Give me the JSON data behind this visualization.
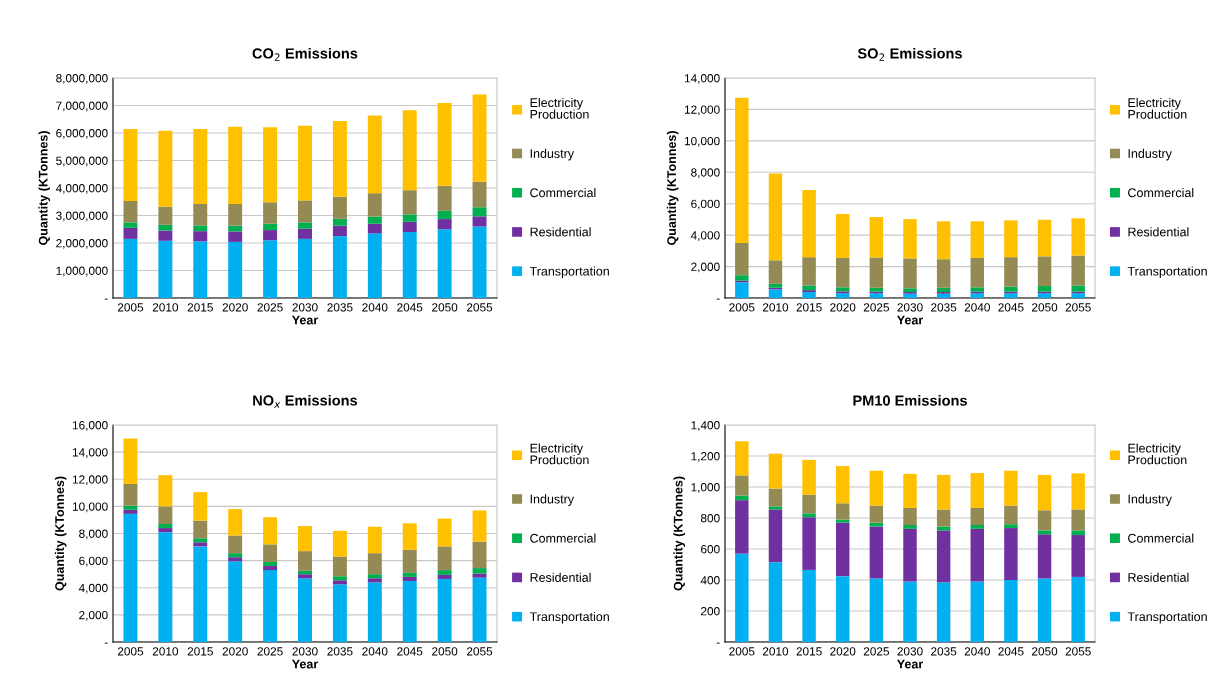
{
  "chart_data": [
    {
      "type": "bar",
      "stacked": true,
      "title": "CO$_{2}$ Emissions",
      "xlabel": "Year",
      "ylabel": "Quantity (KTonnes)",
      "categories": [
        "2005",
        "2010",
        "2015",
        "2020",
        "2025",
        "2030",
        "2035",
        "2040",
        "2045",
        "2050",
        "2055"
      ],
      "ylim": [
        0,
        8000000
      ],
      "yticks": [
        {
          "value": 0,
          "label": "-"
        },
        {
          "value": 1000000,
          "label": "1,000,000"
        },
        {
          "value": 2000000,
          "label": "2,000,000"
        },
        {
          "value": 3000000,
          "label": "3,000,000"
        },
        {
          "value": 4000000,
          "label": "4,000,000"
        },
        {
          "value": 5000000,
          "label": "5,000,000"
        },
        {
          "value": 6000000,
          "label": "6,000,000"
        },
        {
          "value": 7000000,
          "label": "7,000,000"
        },
        {
          "value": 8000000,
          "label": "8,000,000"
        }
      ],
      "grid": "y",
      "legend": "right",
      "series": [
        {
          "name": "Transportation",
          "color": "#00b0f0",
          "values": [
            2150000,
            2080000,
            2060000,
            2040000,
            2100000,
            2150000,
            2250000,
            2350000,
            2400000,
            2500000,
            2600000
          ]
        },
        {
          "name": "Residential",
          "color": "#7030a0",
          "values": [
            400000,
            370000,
            370000,
            380000,
            370000,
            370000,
            380000,
            350000,
            370000,
            370000,
            370000
          ]
        },
        {
          "name": "Commercial",
          "color": "#00b050",
          "values": [
            200000,
            210000,
            210000,
            210000,
            230000,
            230000,
            250000,
            260000,
            270000,
            300000,
            330000
          ]
        },
        {
          "name": "Industry",
          "color": "#948a54",
          "values": [
            780000,
            660000,
            780000,
            790000,
            780000,
            800000,
            800000,
            850000,
            880000,
            910000,
            930000
          ]
        },
        {
          "name": "Electricity Production",
          "color": "#ffc000",
          "values": [
            2620000,
            2760000,
            2730000,
            2810000,
            2730000,
            2710000,
            2760000,
            2830000,
            2910000,
            3010000,
            3170000
          ]
        }
      ]
    },
    {
      "type": "bar",
      "stacked": true,
      "title": "SO$_{2}$ Emissions",
      "xlabel": "Year",
      "ylabel": "Quantity (KTonnes)",
      "categories": [
        "2005",
        "2010",
        "2015",
        "2020",
        "2025",
        "2030",
        "2035",
        "2040",
        "2045",
        "2050",
        "2055"
      ],
      "ylim": [
        0,
        14000
      ],
      "yticks": [
        {
          "value": 0,
          "label": "-"
        },
        {
          "value": 2000,
          "label": "2,000"
        },
        {
          "value": 4000,
          "label": "4,000"
        },
        {
          "value": 6000,
          "label": "6,000"
        },
        {
          "value": 8000,
          "label": "8,000"
        },
        {
          "value": 10000,
          "label": "10,000"
        },
        {
          "value": 12000,
          "label": "12,000"
        },
        {
          "value": 14000,
          "label": "14,000"
        }
      ],
      "grid": "y",
      "legend": "right",
      "series": [
        {
          "name": "Transportation",
          "color": "#00b0f0",
          "values": [
            1000,
            550,
            380,
            300,
            300,
            280,
            280,
            300,
            300,
            300,
            300
          ]
        },
        {
          "name": "Residential",
          "color": "#7030a0",
          "values": [
            100,
            100,
            120,
            120,
            100,
            100,
            100,
            100,
            100,
            100,
            100
          ]
        },
        {
          "name": "Commercial",
          "color": "#00b050",
          "values": [
            350,
            250,
            300,
            260,
            250,
            240,
            270,
            280,
            320,
            360,
            400
          ]
        },
        {
          "name": "Industry",
          "color": "#948a54",
          "values": [
            2050,
            1500,
            1800,
            1870,
            1930,
            1900,
            1820,
            1870,
            1880,
            1890,
            1900
          ]
        },
        {
          "name": "Electricity Production",
          "color": "#ffc000",
          "values": [
            9250,
            5520,
            4270,
            2800,
            2570,
            2500,
            2410,
            2330,
            2340,
            2330,
            2370
          ]
        }
      ]
    },
    {
      "type": "bar",
      "stacked": true,
      "title": "NO$_{x}$ Emissions",
      "xlabel": "Year",
      "ylabel": "Quantity (KTonnes)",
      "categories": [
        "2005",
        "2010",
        "2015",
        "2020",
        "2025",
        "2030",
        "2035",
        "2040",
        "2045",
        "2050",
        "2055"
      ],
      "ylim": [
        0,
        16000
      ],
      "yticks": [
        {
          "value": 0,
          "label": "-"
        },
        {
          "value": 2000,
          "label": "2,000"
        },
        {
          "value": 4000,
          "label": "4,000"
        },
        {
          "value": 6000,
          "label": "6,000"
        },
        {
          "value": 8000,
          "label": "8,000"
        },
        {
          "value": 10000,
          "label": "10,000"
        },
        {
          "value": 12000,
          "label": "12,000"
        },
        {
          "value": 14000,
          "label": "14,000"
        },
        {
          "value": 16000,
          "label": "16,000"
        }
      ],
      "grid": "y",
      "legend": "right",
      "series": [
        {
          "name": "Transportation",
          "color": "#00b0f0",
          "values": [
            9450,
            8100,
            7050,
            5950,
            5300,
            4700,
            4250,
            4400,
            4500,
            4650,
            4750
          ]
        },
        {
          "name": "Residential",
          "color": "#7030a0",
          "values": [
            300,
            300,
            300,
            300,
            300,
            300,
            300,
            300,
            300,
            300,
            300
          ]
        },
        {
          "name": "Commercial",
          "color": "#00b050",
          "values": [
            300,
            300,
            300,
            300,
            300,
            250,
            300,
            300,
            300,
            350,
            400
          ]
        },
        {
          "name": "Industry",
          "color": "#948a54",
          "values": [
            1600,
            1300,
            1300,
            1300,
            1300,
            1450,
            1450,
            1550,
            1700,
            1750,
            1950
          ]
        },
        {
          "name": "Electricity Production",
          "color": "#ffc000",
          "values": [
            3350,
            2300,
            2100,
            1950,
            2000,
            1850,
            1900,
            1950,
            1950,
            2050,
            2300
          ]
        }
      ]
    },
    {
      "type": "bar",
      "stacked": true,
      "title": "PM10 Emissions",
      "xlabel": "Year",
      "ylabel": "Quantity (KTonnes)",
      "categories": [
        "2005",
        "2010",
        "2015",
        "2020",
        "2025",
        "2030",
        "2035",
        "2040",
        "2045",
        "2050",
        "2055"
      ],
      "ylim": [
        0,
        1400
      ],
      "yticks": [
        {
          "value": 0,
          "label": "-"
        },
        {
          "value": 200,
          "label": "200"
        },
        {
          "value": 400,
          "label": "400"
        },
        {
          "value": 600,
          "label": "600"
        },
        {
          "value": 800,
          "label": "800"
        },
        {
          "value": 1000,
          "label": "1,000"
        },
        {
          "value": 1200,
          "label": "1,200"
        },
        {
          "value": 1400,
          "label": "1,400"
        }
      ],
      "grid": "y",
      "legend": "right",
      "series": [
        {
          "name": "Transportation",
          "color": "#00b0f0",
          "values": [
            570,
            515,
            465,
            425,
            410,
            390,
            385,
            390,
            400,
            410,
            420
          ]
        },
        {
          "name": "Residential",
          "color": "#7030a0",
          "values": [
            345,
            340,
            340,
            345,
            335,
            340,
            335,
            340,
            335,
            285,
            270
          ]
        },
        {
          "name": "Commercial",
          "color": "#00b050",
          "values": [
            30,
            20,
            25,
            20,
            25,
            25,
            25,
            25,
            25,
            25,
            30
          ]
        },
        {
          "name": "Industry",
          "color": "#948a54",
          "values": [
            130,
            115,
            120,
            105,
            110,
            110,
            110,
            110,
            120,
            130,
            135
          ]
        },
        {
          "name": "Electricity Production",
          "color": "#ffc000",
          "values": [
            220,
            225,
            225,
            240,
            225,
            220,
            223,
            225,
            225,
            228,
            233
          ]
        }
      ]
    }
  ]
}
